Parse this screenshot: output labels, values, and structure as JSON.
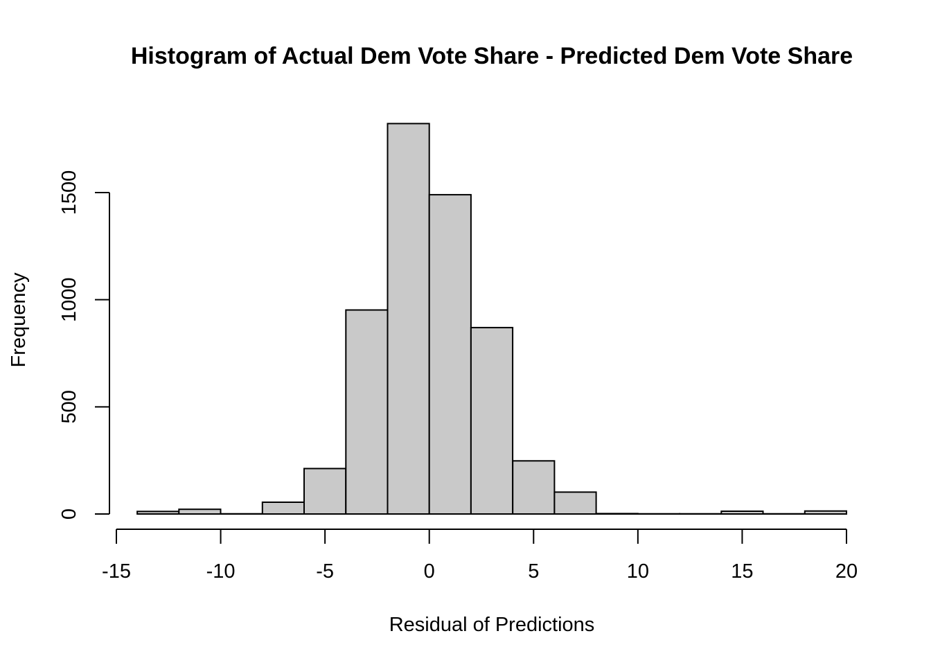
{
  "chart_data": {
    "type": "bar",
    "title": "Histogram of Actual Dem Vote Share - Predicted Dem Vote Share",
    "xlabel": "Residual of Predictions",
    "ylabel": "Frequency",
    "xlim": [
      -15,
      20
    ],
    "ylim": [
      0,
      1800
    ],
    "x_ticks": [
      -15,
      -10,
      -5,
      0,
      5,
      10,
      15,
      20
    ],
    "x_tick_labels": [
      "-15",
      "-10",
      "-5",
      "0",
      "5",
      "10",
      "15",
      "20"
    ],
    "y_ticks": [
      0,
      500,
      1000,
      1500
    ],
    "y_tick_labels": [
      "0",
      "500",
      "1000",
      "1500"
    ],
    "bin_edges": [
      -14,
      -12,
      -10,
      -8,
      -6,
      -4,
      -2,
      0,
      2,
      4,
      6,
      8,
      10,
      12,
      14,
      16,
      18,
      20
    ],
    "values": [
      12,
      22,
      1,
      55,
      212,
      952,
      1822,
      1490,
      870,
      248,
      102,
      2,
      1,
      1,
      13,
      1,
      14
    ],
    "bar_fill": "#c9c9c9",
    "bar_stroke": "#000000",
    "grid": false,
    "legend": "none"
  }
}
